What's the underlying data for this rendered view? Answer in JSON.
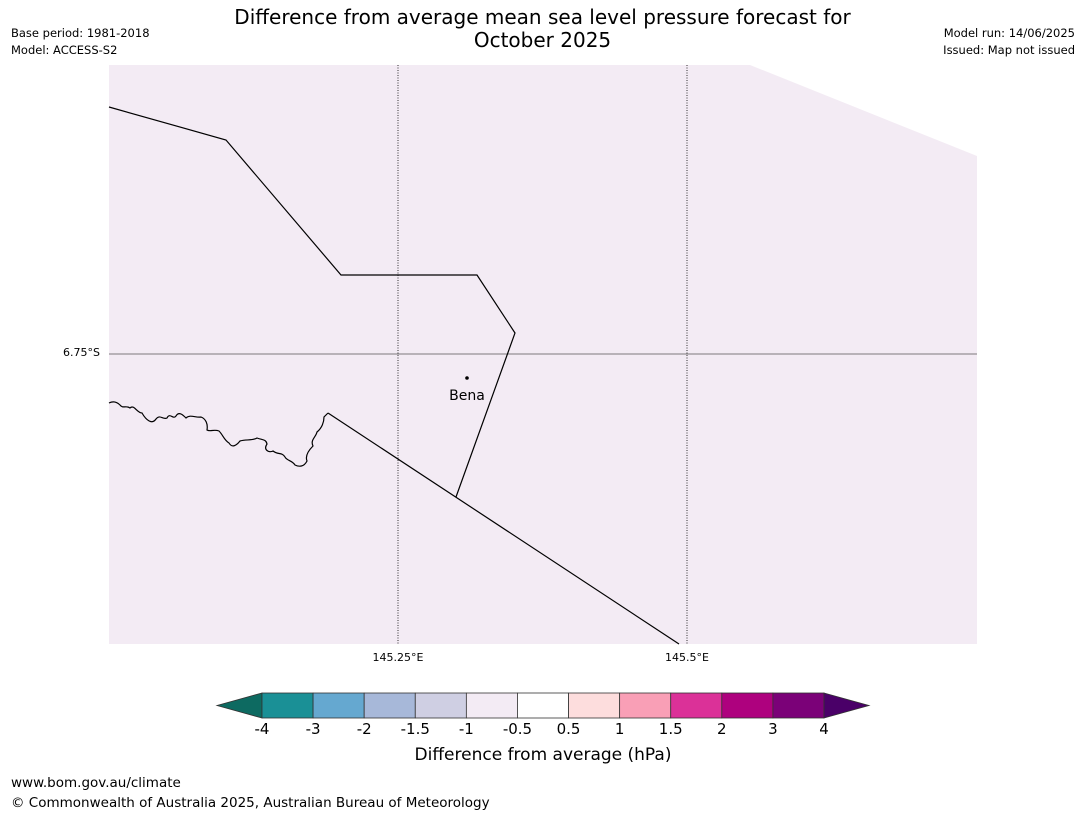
{
  "title": {
    "line1": "Difference from average mean sea level pressure forecast for",
    "line2": "October 2025"
  },
  "meta_left": {
    "base_period": "Base period: 1981-2018",
    "model": "Model: ACCESS-S2"
  },
  "meta_right": {
    "model_run": "Model run: 14/06/2025",
    "issued": "Issued: Map not issued"
  },
  "map": {
    "fill_color": "#f3ebf4",
    "anomaly_value_hpa": -0.75,
    "latitude_labels": [
      "6.75°S"
    ],
    "longitude_labels": [
      "145.25°E",
      "145.5°E"
    ],
    "town": {
      "name": "Bena"
    }
  },
  "colorbar": {
    "label": "Difference from average (hPa)",
    "ticks": [
      "-4",
      "-3",
      "-2",
      "-1.5",
      "-1",
      "-0.5",
      "0.5",
      "1",
      "1.5",
      "2",
      "3",
      "4"
    ],
    "under_color": "#0d6a61",
    "over_color": "#4a0068",
    "colors": [
      "#1a9096",
      "#65a8d0",
      "#a7b8d9",
      "#cfcfe3",
      "#f3ebf4",
      "#ffffff",
      "#fddddd",
      "#f99fb6",
      "#db3198",
      "#ae017e",
      "#7b0178"
    ]
  },
  "footer": {
    "url": "www.bom.gov.au/climate",
    "copyright": "© Commonwealth of Australia 2025, Australian Bureau of Meteorology"
  }
}
